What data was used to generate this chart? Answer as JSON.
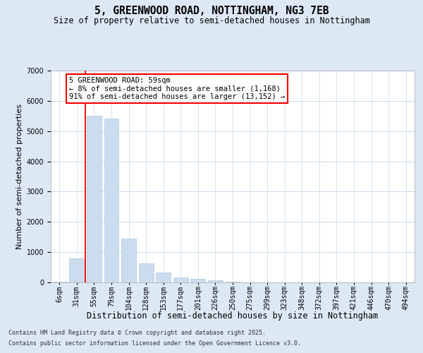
{
  "title_line1": "5, GREENWOOD ROAD, NOTTINGHAM, NG3 7EB",
  "title_line2": "Size of property relative to semi-detached houses in Nottingham",
  "xlabel": "Distribution of semi-detached houses by size in Nottingham",
  "ylabel": "Number of semi-detached properties",
  "categories": [
    "6sqm",
    "31sqm",
    "55sqm",
    "79sqm",
    "104sqm",
    "128sqm",
    "153sqm",
    "177sqm",
    "201sqm",
    "226sqm",
    "250sqm",
    "275sqm",
    "299sqm",
    "323sqm",
    "348sqm",
    "372sqm",
    "397sqm",
    "421sqm",
    "446sqm",
    "470sqm",
    "494sqm"
  ],
  "values": [
    30,
    790,
    5500,
    5420,
    1450,
    620,
    330,
    170,
    110,
    60,
    20,
    5,
    2,
    1,
    0,
    0,
    0,
    0,
    0,
    0,
    0
  ],
  "bar_color": "#ccdcef",
  "bar_edge_color": "#b0c8e0",
  "vline_x_index": 1.5,
  "vline_color": "red",
  "annotation_text": "5 GREENWOOD ROAD: 59sqm\n← 8% of semi-detached houses are smaller (1,168)\n91% of semi-detached houses are larger (13,152) →",
  "annotation_box_color": "white",
  "annotation_box_edge": "red",
  "ylim": [
    0,
    7000
  ],
  "yticks": [
    0,
    1000,
    2000,
    3000,
    4000,
    5000,
    6000,
    7000
  ],
  "background_color": "#dde8f5",
  "plot_background": "white",
  "footer_line1": "Contains HM Land Registry data © Crown copyright and database right 2025.",
  "footer_line2": "Contains public sector information licensed under the Open Government Licence v3.0.",
  "grid_color": "#c8d8ec",
  "title_fontsize": 10.5,
  "subtitle_fontsize": 8.5,
  "axis_label_fontsize": 8,
  "tick_fontsize": 7,
  "annotation_fontsize": 7.5,
  "footer_fontsize": 6.0
}
